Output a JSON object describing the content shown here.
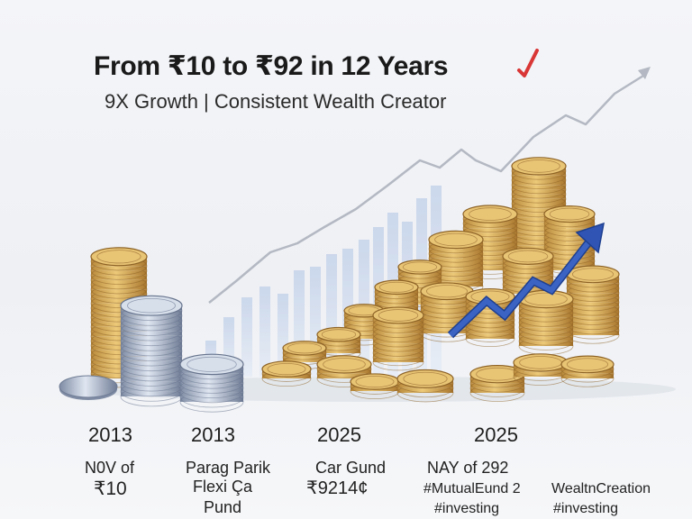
{
  "header": {
    "title": "From ₹10 to ₹92 in 12 Years",
    "subtitle": "9X Growth | Consistent Wealth Creator"
  },
  "labels": [
    {
      "year": "2013",
      "line1": "N0V of",
      "line2": "₹10"
    },
    {
      "year": "2013",
      "line1": "Parag Parik",
      "line2": "Flexi Ça",
      "line3": "Pund"
    },
    {
      "year": "2025",
      "line1": "Car Gund",
      "line2": "₹9214¢"
    },
    {
      "year": "2025",
      "line1": "NAY of 292",
      "line2": "#MutualEund 2",
      "line3": "#investing"
    },
    {
      "line1": "WealtnCreation",
      "line2": "#investing"
    }
  ],
  "colors": {
    "gold": "#d9ae58",
    "silver": "#aebbd0",
    "arrow": "#2f54b4",
    "check": "#d93636"
  },
  "icons": [
    "check-mark-icon",
    "growth-arrow-icon"
  ]
}
